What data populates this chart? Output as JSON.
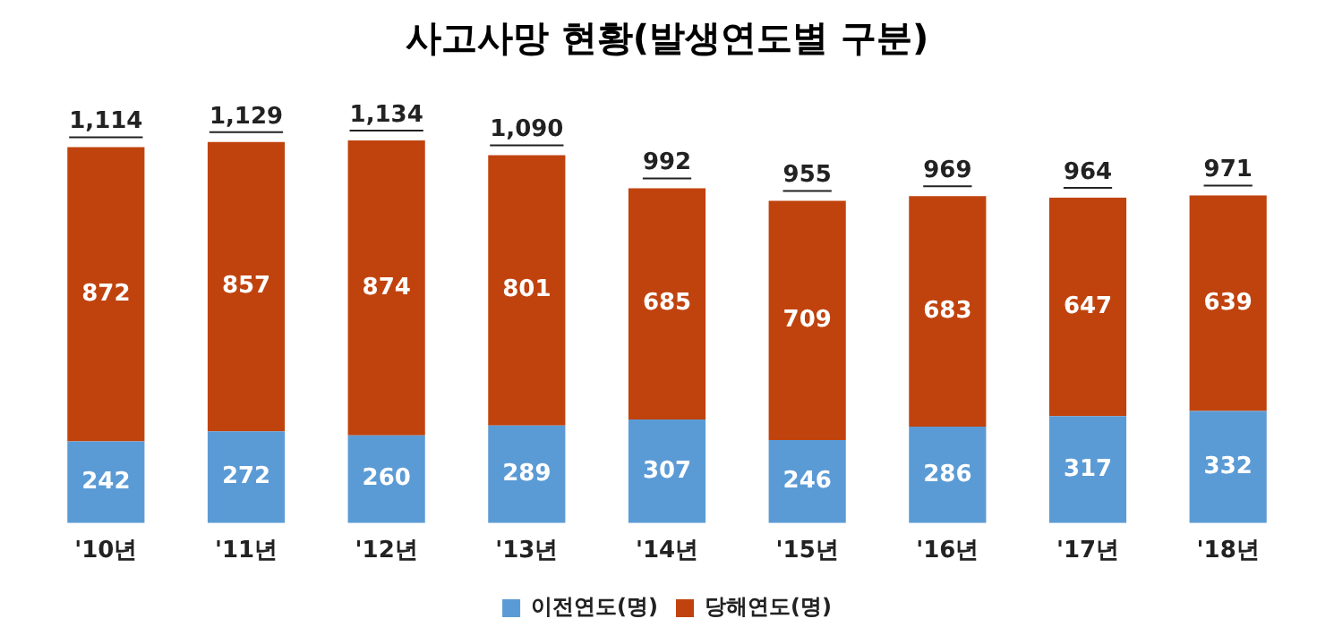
{
  "chart_data": {
    "type": "bar",
    "title": "사고사망 현황(발생연도별 구분)",
    "stacked": true,
    "data_labels": true,
    "legend": "bottom",
    "categories": [
      "'10년",
      "'11년",
      "'12년",
      "'13년",
      "'14년",
      "'15년",
      "'16년",
      "'17년",
      "'18년"
    ],
    "series": [
      {
        "name": "이전연도(명)",
        "color": "#5b9bd5",
        "values": [
          242,
          272,
          260,
          289,
          307,
          246,
          286,
          317,
          332
        ]
      },
      {
        "name": "당해연도(명)",
        "color": "#c0430e",
        "values": [
          872,
          857,
          874,
          801,
          685,
          709,
          683,
          647,
          639
        ]
      }
    ],
    "totals": [
      "1,114",
      "1,129",
      "1,134",
      "1,090",
      "992",
      "955",
      "969",
      "964",
      "971"
    ]
  }
}
